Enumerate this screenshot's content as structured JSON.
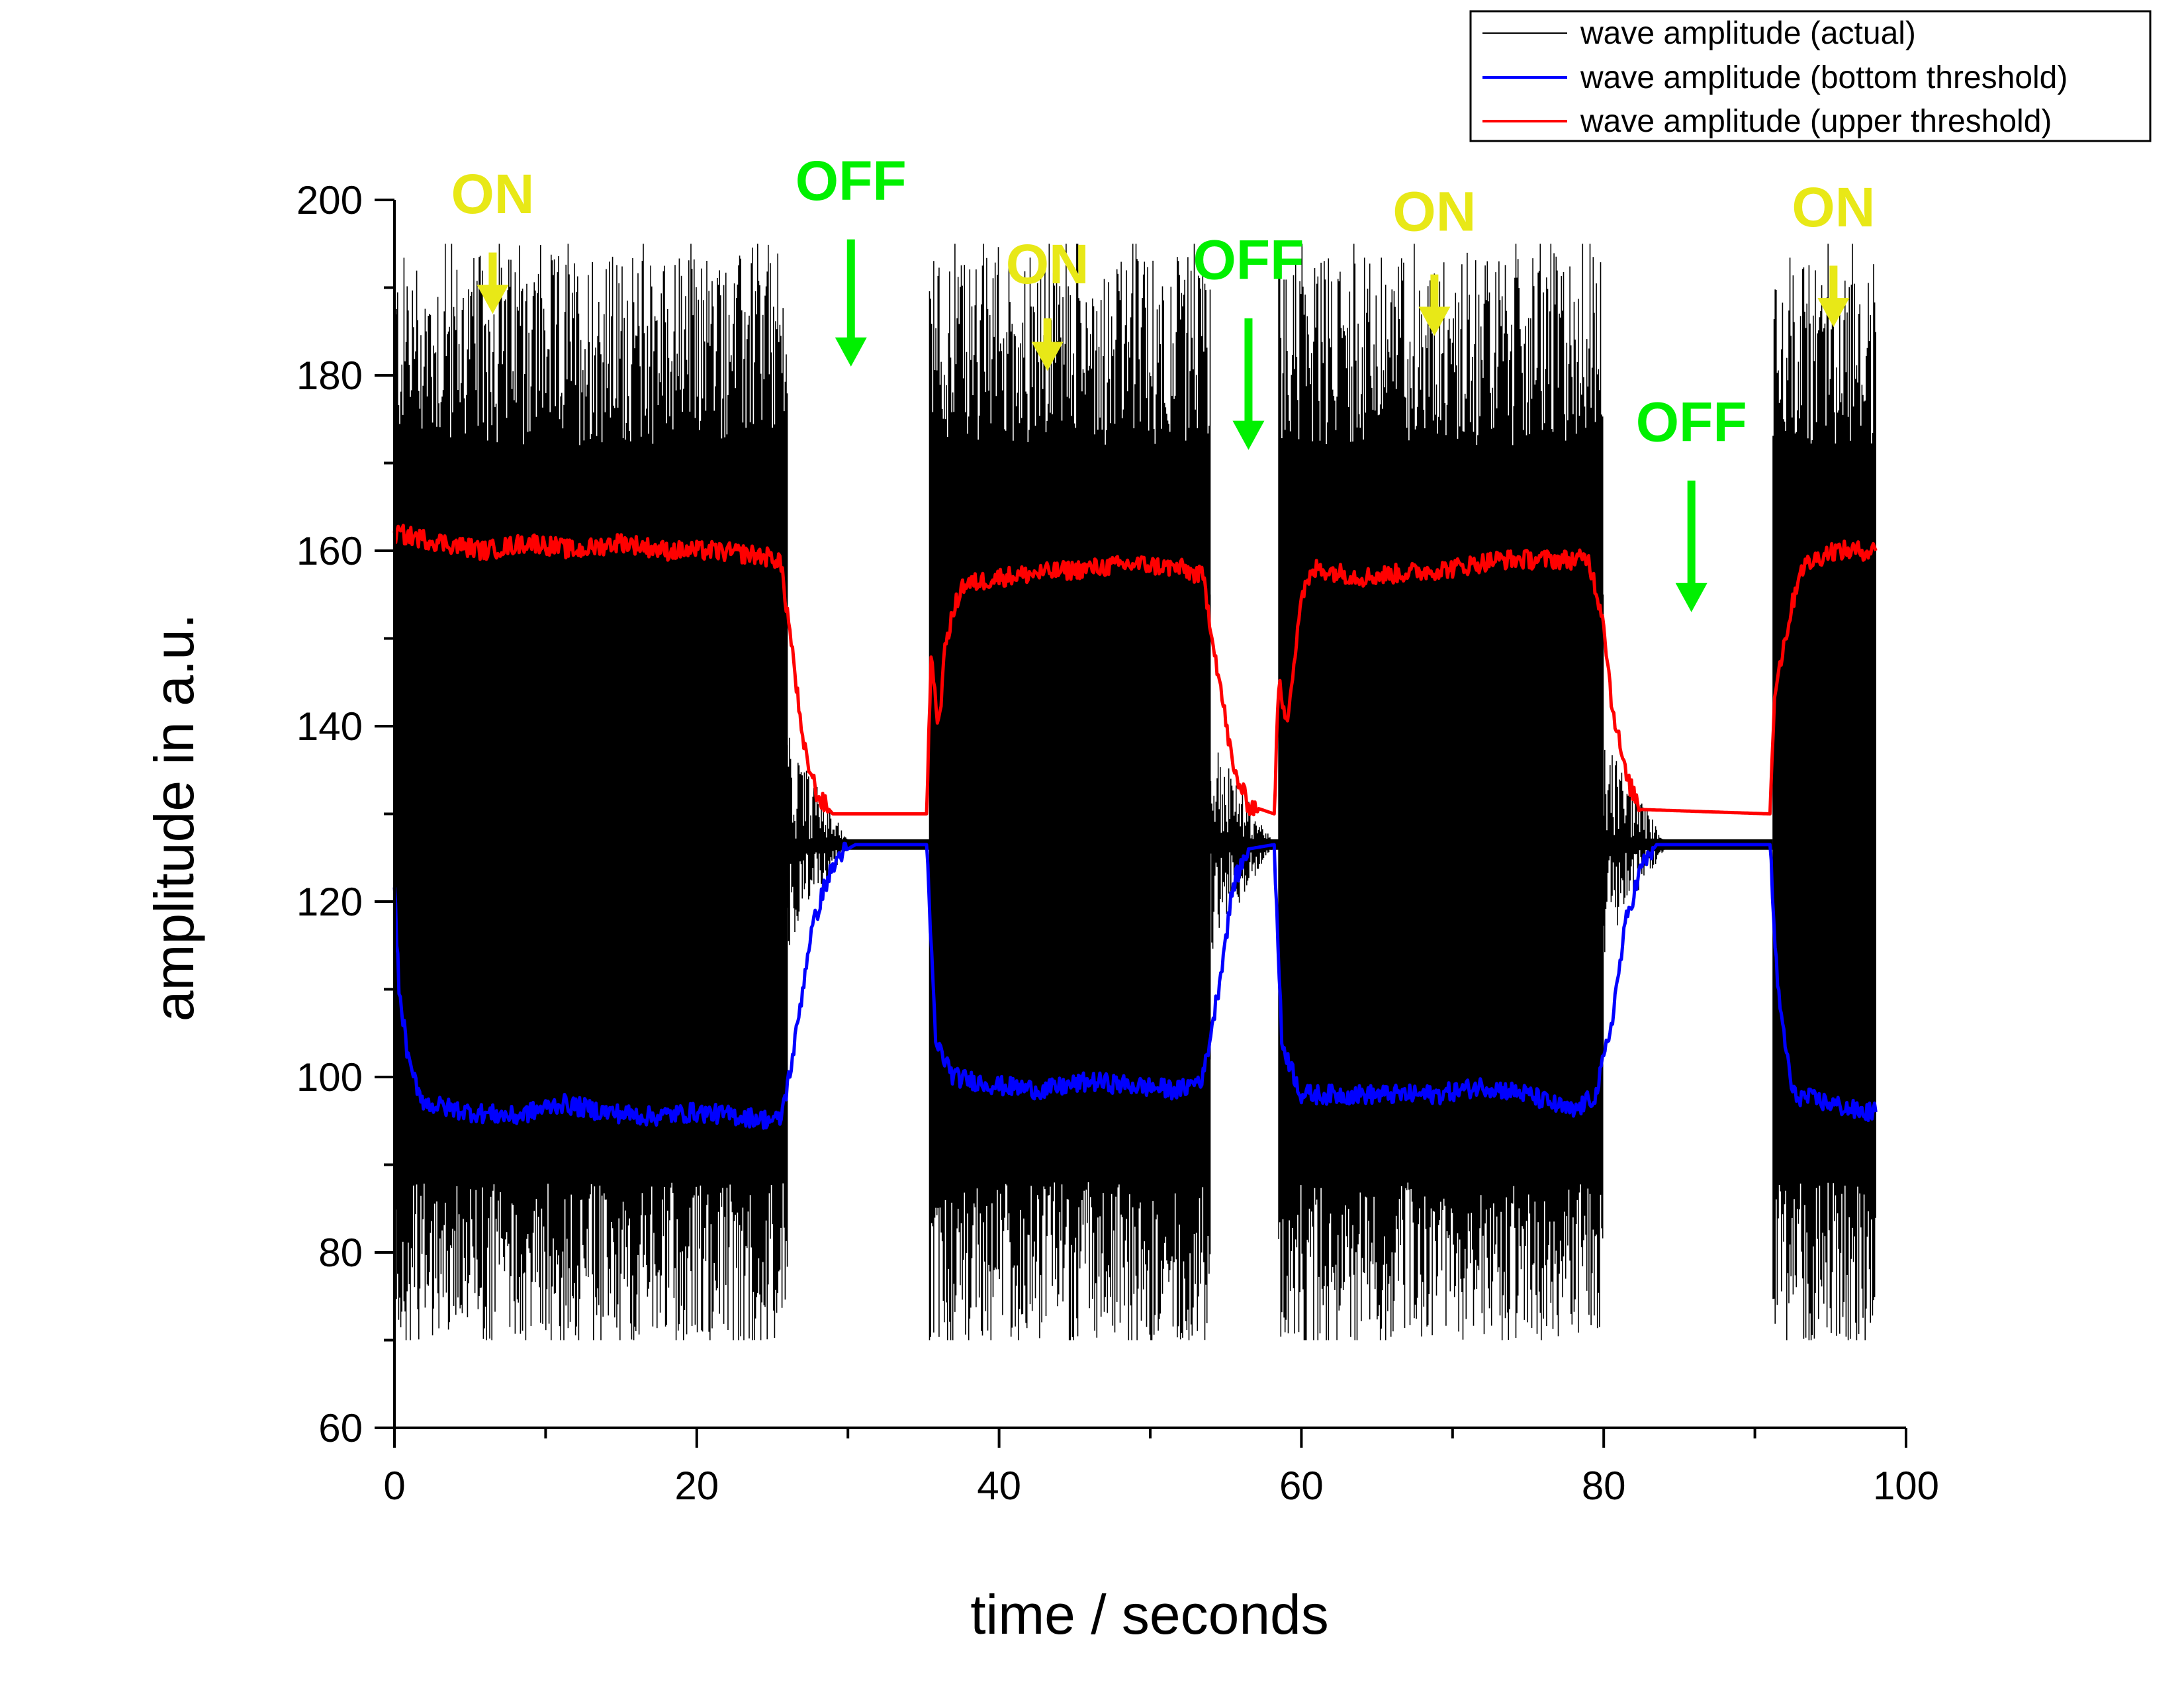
{
  "chart_data": {
    "type": "line",
    "title": "",
    "xlabel": "time / seconds",
    "ylabel": "amplitude in a.u.",
    "xlim": [
      0,
      100
    ],
    "ylim": [
      60,
      200
    ],
    "x_ticks": [
      0,
      20,
      40,
      60,
      80,
      100
    ],
    "y_ticks": [
      60,
      80,
      100,
      120,
      140,
      160,
      180,
      200
    ],
    "legend_position": "top-right",
    "grid": false,
    "series": [
      {
        "name": "wave amplitude (actual)",
        "color": "#000000",
        "description": "noisy oscillation spanning approx. 80-180 during ON phases and about 126 during OFF phases",
        "on_band": {
          "low": 80,
          "high": 180,
          "peak_low": 70,
          "peak_high": 195
        },
        "off_level": 126.5
      },
      {
        "name": "wave amplitude (bottom threshold)",
        "color": "#0000ff",
        "points": [
          [
            0,
            122
          ],
          [
            0.3,
            110
          ],
          [
            1,
            101
          ],
          [
            2,
            97
          ],
          [
            5,
            96
          ],
          [
            8,
            95.5
          ],
          [
            11,
            97
          ],
          [
            14,
            96
          ],
          [
            17,
            95.5
          ],
          [
            20,
            96
          ],
          [
            23,
            95.5
          ],
          [
            25.5,
            95
          ],
          [
            26,
            99
          ],
          [
            26.5,
            104
          ],
          [
            27.5,
            116
          ],
          [
            28.5,
            122
          ],
          [
            29.5,
            125.5
          ],
          [
            30.5,
            126.5
          ],
          [
            35.2,
            126.5
          ],
          [
            35.8,
            104
          ],
          [
            37,
            100
          ],
          [
            40,
            99
          ],
          [
            43,
            98.5
          ],
          [
            46,
            99.5
          ],
          [
            49,
            99
          ],
          [
            52,
            98.5
          ],
          [
            53.5,
            100
          ],
          [
            54.5,
            110
          ],
          [
            55.5,
            122
          ],
          [
            56.5,
            126
          ],
          [
            58.2,
            126.5
          ],
          [
            58.7,
            104
          ],
          [
            60,
            98
          ],
          [
            63,
            98
          ],
          [
            66,
            98
          ],
          [
            69,
            98
          ],
          [
            72,
            99
          ],
          [
            75,
            98
          ],
          [
            78,
            96
          ],
          [
            79.5,
            98
          ],
          [
            80.5,
            106
          ],
          [
            81.5,
            118
          ],
          [
            82.5,
            124
          ],
          [
            83.5,
            126.5
          ],
          [
            91,
            126.5
          ],
          [
            91.5,
            110
          ],
          [
            92.5,
            98
          ],
          [
            95,
            97
          ],
          [
            97,
            96
          ],
          [
            98,
            96
          ]
        ]
      },
      {
        "name": "wave amplitude (upper threshold)",
        "color": "#ff0000",
        "points": [
          [
            0,
            162
          ],
          [
            3,
            161
          ],
          [
            6,
            160
          ],
          [
            9,
            161
          ],
          [
            12,
            160
          ],
          [
            15,
            161
          ],
          [
            18,
            160
          ],
          [
            21,
            160
          ],
          [
            24,
            159.5
          ],
          [
            25.5,
            159
          ],
          [
            26,
            153
          ],
          [
            26.5,
            146
          ],
          [
            27,
            138
          ],
          [
            28,
            132
          ],
          [
            29,
            130
          ],
          [
            35.2,
            130
          ],
          [
            35.5,
            148
          ],
          [
            36,
            140
          ],
          [
            36.5,
            150
          ],
          [
            37.5,
            156
          ],
          [
            40,
            157
          ],
          [
            43,
            157.5
          ],
          [
            46,
            158
          ],
          [
            49,
            158.5
          ],
          [
            52,
            158
          ],
          [
            53.5,
            157
          ],
          [
            54.5,
            146
          ],
          [
            55.5,
            135
          ],
          [
            56.5,
            131
          ],
          [
            58.2,
            130
          ],
          [
            58.5,
            145
          ],
          [
            59,
            140
          ],
          [
            60,
            155
          ],
          [
            61,
            158
          ],
          [
            64,
            157
          ],
          [
            67,
            157.5
          ],
          [
            70,
            158
          ],
          [
            73,
            159
          ],
          [
            76,
            159
          ],
          [
            79,
            159
          ],
          [
            80,
            152
          ],
          [
            80.5,
            143
          ],
          [
            81.5,
            134
          ],
          [
            82.5,
            130.5
          ],
          [
            91,
            130
          ],
          [
            91.3,
            144
          ],
          [
            92,
            150
          ],
          [
            93,
            158
          ],
          [
            95,
            160
          ],
          [
            97,
            160
          ],
          [
            98,
            160
          ]
        ]
      }
    ],
    "segments": [
      {
        "start": 0,
        "end": 26
      },
      {
        "start": 35.4,
        "end": 54
      },
      {
        "start": 58.5,
        "end": 80
      },
      {
        "start": 91.2,
        "end": 98
      }
    ],
    "off_window_end": 98,
    "annotations": [
      {
        "text": "ON",
        "x": 6.5,
        "y_text": 198.5,
        "y_arrow_top": 194,
        "y_arrow_tip": 187,
        "color": "#e8e817"
      },
      {
        "text": "OFF",
        "x": 30.2,
        "y_text": 200,
        "y_arrow_top": 195.5,
        "y_arrow_tip": 181,
        "color": "#00f000"
      },
      {
        "text": "ON",
        "x": 43.2,
        "y_text": 190.5,
        "y_arrow_top": 186.5,
        "y_arrow_tip": 180.5,
        "color": "#e8e817"
      },
      {
        "text": "OFF",
        "x": 56.5,
        "y_text": 191,
        "y_arrow_top": 186.5,
        "y_arrow_tip": 171.5,
        "color": "#00f000"
      },
      {
        "text": "ON",
        "x": 68.8,
        "y_text": 196.5,
        "y_arrow_top": 191.5,
        "y_arrow_tip": 184.5,
        "color": "#e8e817"
      },
      {
        "text": "OFF",
        "x": 85.8,
        "y_text": 172.5,
        "y_arrow_top": 168,
        "y_arrow_tip": 153,
        "color": "#00f000"
      },
      {
        "text": "ON",
        "x": 95.2,
        "y_text": 197,
        "y_arrow_top": 192.5,
        "y_arrow_tip": 185.5,
        "color": "#e8e817"
      }
    ]
  }
}
